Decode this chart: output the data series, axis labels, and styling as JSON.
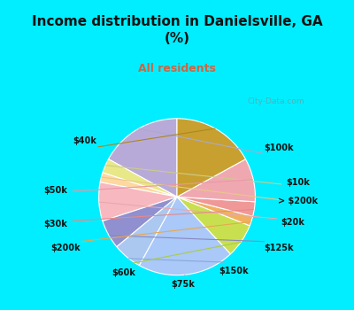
{
  "title": "Income distribution in Danielsville, GA\n(%)",
  "subtitle": "All residents",
  "background_top": "#00eeff",
  "background_chart_color": "#d0ede0",
  "labels": [
    "$100k",
    "$10k",
    "> $200k",
    "$20k",
    "$125k",
    "$150k",
    "$75k",
    "$60k",
    "$200k",
    "$30k",
    "$50k",
    "$40k"
  ],
  "values": [
    17,
    3,
    2,
    8,
    6,
    6,
    20,
    7,
    2,
    3,
    9,
    17
  ],
  "colors": [
    "#b8aad8",
    "#e8e888",
    "#ffd8a0",
    "#f8b8c0",
    "#9090d0",
    "#aac8f0",
    "#aac8f8",
    "#c8e050",
    "#f0b060",
    "#f09898",
    "#f0a8b0",
    "#c8a030"
  ],
  "line_colors": [
    "#aaaacc",
    "#cccc88",
    "#e8c888",
    "#e8a8b0",
    "#8888c0",
    "#88aad8",
    "#aaaacc",
    "#aacc44",
    "#e8a850",
    "#e88888",
    "#e898a8",
    "#aa8820"
  ],
  "watermark": "City-Data.com"
}
